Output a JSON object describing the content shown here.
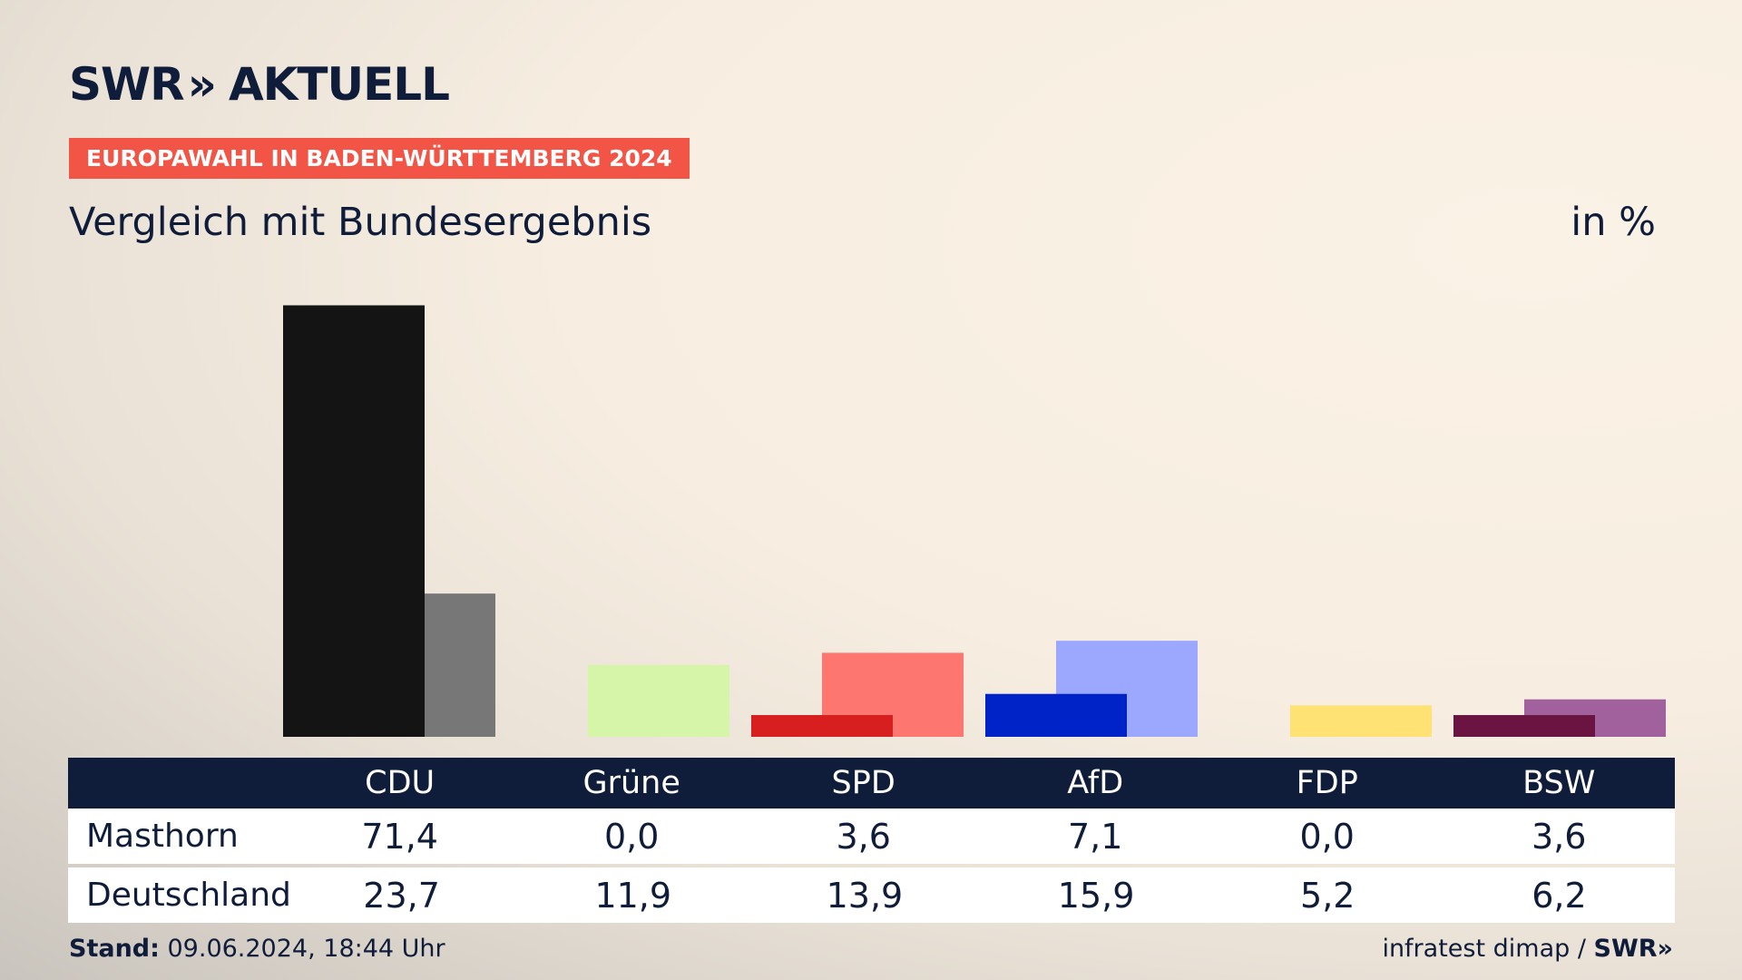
{
  "brand": {
    "left": "SWR",
    "arrows": "»",
    "right": "AKTUELL"
  },
  "badge": "EUROPAWAHL IN BADEN-WÜRTTEMBERG 2024",
  "subtitle": "Vergleich mit Bundesergebnis",
  "unit": "in %",
  "footer": {
    "stand_label": "Stand:",
    "stand_value": " 09.06.2024, 18:44 Uhr",
    "source": "infratest dimap / ",
    "source_brand": "SWR»"
  },
  "colors": {
    "CDU": [
      "#141414",
      "#777777"
    ],
    "Grüne": [
      "#5cb82a",
      "#d7f5a8"
    ],
    "SPD": [
      "#d71f1f",
      "#fd766f"
    ],
    "AfD": [
      "#0023c8",
      "#9ca8fe"
    ],
    "FDP": [
      "#f5c800",
      "#ffe273"
    ],
    "BSW": [
      "#6a1541",
      "#a0619d"
    ]
  },
  "chart_data": {
    "type": "bar",
    "categories": [
      "CDU",
      "Grüne",
      "SPD",
      "AfD",
      "FDP",
      "BSW"
    ],
    "series": [
      {
        "name": "Masthorn",
        "values": [
          71.4,
          0.0,
          3.6,
          7.1,
          0.0,
          3.6
        ]
      },
      {
        "name": "Deutschland",
        "values": [
          23.7,
          11.9,
          13.9,
          15.9,
          5.2,
          6.2
        ]
      }
    ]
  },
  "table": {
    "rows": [
      {
        "label": "Masthorn",
        "values": [
          "71,4",
          "0,0",
          "3,6",
          "7,1",
          "0,0",
          "3,6"
        ]
      },
      {
        "label": "Deutschland",
        "values": [
          "23,7",
          "11,9",
          "13,9",
          "15,9",
          "5,2",
          "6,2"
        ]
      }
    ]
  }
}
